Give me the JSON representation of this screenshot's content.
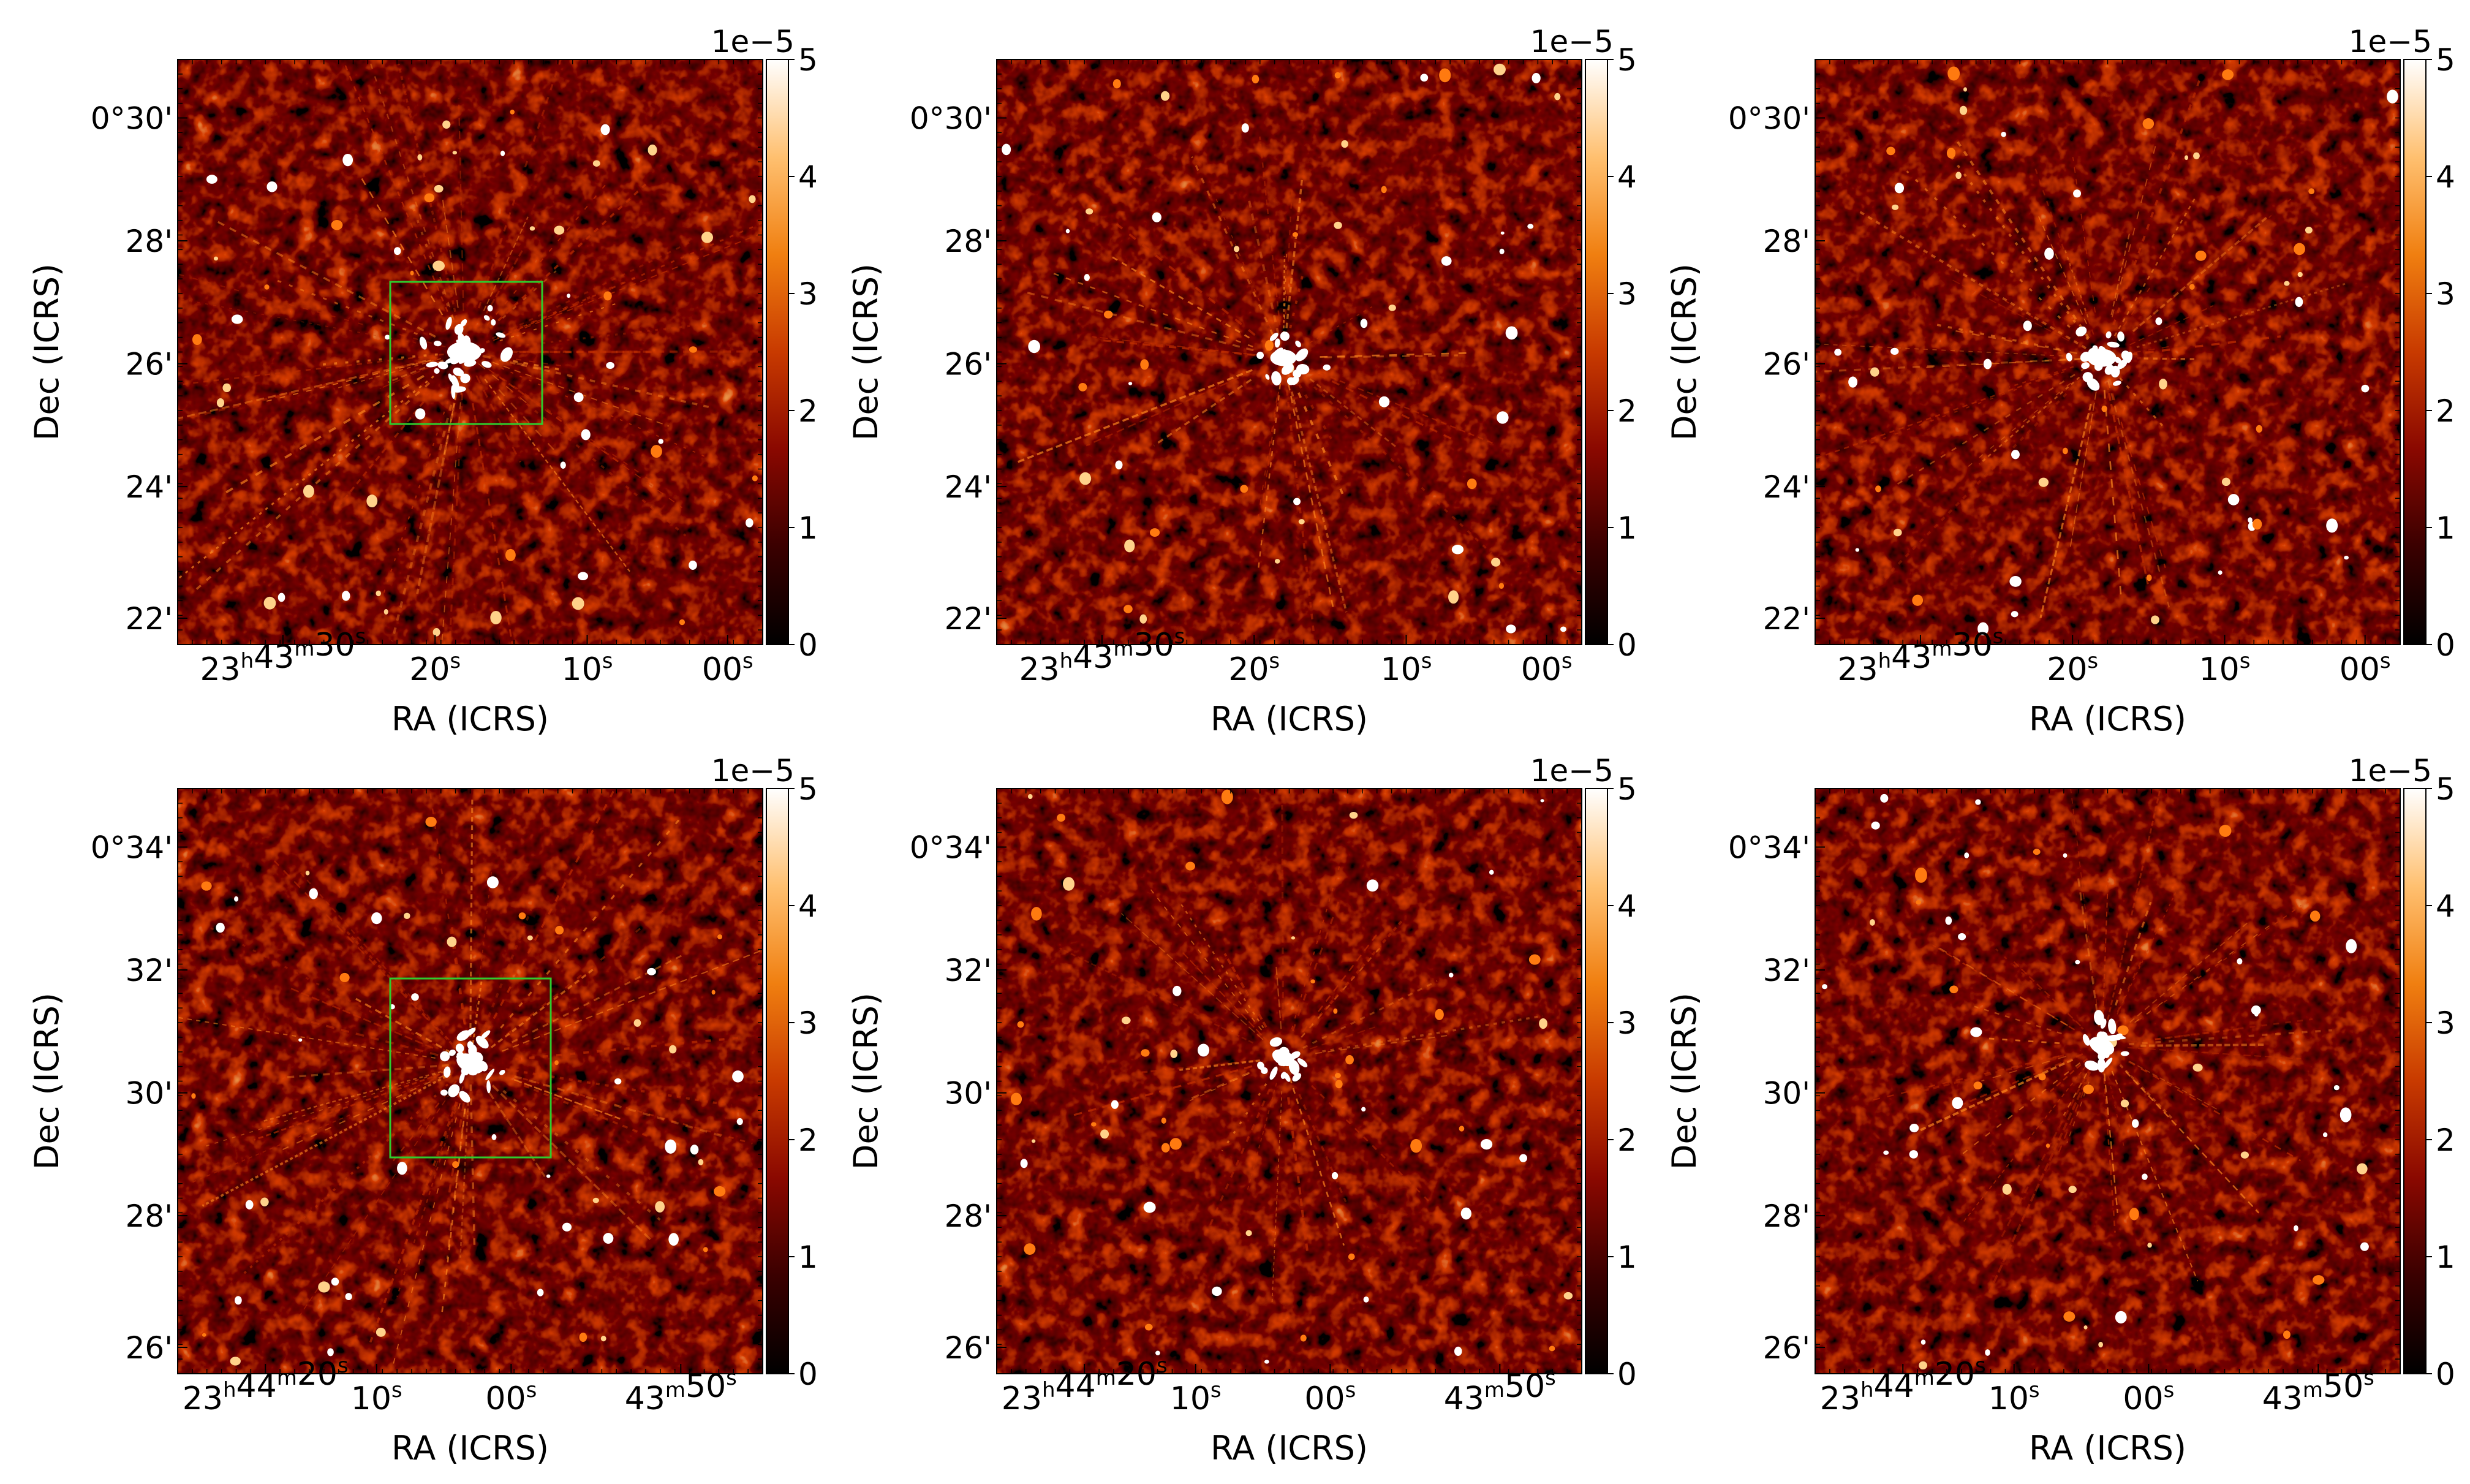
{
  "figure": {
    "colormap_name": "gist_heat",
    "colors": {
      "box": "#2ecc2e",
      "axis": "#000000",
      "background": "#ffffff",
      "colormap_stops": [
        "#000000",
        "#3a0000",
        "#8a0800",
        "#c83a00",
        "#f07f10",
        "#ffc070",
        "#ffffff"
      ]
    },
    "colorbar": {
      "multiplier": "1e−5",
      "ticks": [
        "0",
        "1",
        "2",
        "3",
        "4",
        "5"
      ]
    },
    "panels": [
      {
        "id": "top-left",
        "xlabel": "RA (ICRS)",
        "ylabel": "Dec (ICRS)",
        "ra_ticks": [
          {
            "h": "23",
            "m": "43",
            "s": "30"
          },
          {
            "s": "20"
          },
          {
            "s": "10"
          },
          {
            "s": "00"
          }
        ],
        "dec_ticks": [
          "0°30'",
          "28'",
          "26'",
          "24'",
          "22'"
        ],
        "has_box": true
      },
      {
        "id": "top-middle",
        "xlabel": "RA (ICRS)",
        "ylabel": "Dec (ICRS)",
        "ra_ticks": [
          {
            "h": "23",
            "m": "43",
            "s": "30"
          },
          {
            "s": "20"
          },
          {
            "s": "10"
          },
          {
            "s": "00"
          }
        ],
        "dec_ticks": [
          "0°30'",
          "28'",
          "26'",
          "24'",
          "22'"
        ],
        "has_box": false
      },
      {
        "id": "top-right",
        "xlabel": "RA (ICRS)",
        "ylabel": "Dec (ICRS)",
        "ra_ticks": [
          {
            "h": "23",
            "m": "43",
            "s": "30"
          },
          {
            "s": "20"
          },
          {
            "s": "10"
          },
          {
            "s": "00"
          }
        ],
        "dec_ticks": [
          "0°30'",
          "28'",
          "26'",
          "24'",
          "22'"
        ],
        "has_box": false
      },
      {
        "id": "bottom-left",
        "xlabel": "RA (ICRS)",
        "ylabel": "Dec (ICRS)",
        "ra_ticks": [
          {
            "h": "23",
            "m": "44",
            "s": "20"
          },
          {
            "s": "10"
          },
          {
            "s": "00"
          },
          {
            "m": "43",
            "s": "50"
          }
        ],
        "dec_ticks": [
          "0°34'",
          "32'",
          "30'",
          "28'",
          "26'"
        ],
        "has_box": true
      },
      {
        "id": "bottom-middle",
        "xlabel": "RA (ICRS)",
        "ylabel": "Dec (ICRS)",
        "ra_ticks": [
          {
            "h": "23",
            "m": "44",
            "s": "20"
          },
          {
            "s": "10"
          },
          {
            "s": "00"
          },
          {
            "m": "43",
            "s": "50"
          }
        ],
        "dec_ticks": [
          "0°34'",
          "32'",
          "30'",
          "28'",
          "26'"
        ],
        "has_box": false
      },
      {
        "id": "bottom-right",
        "xlabel": "RA (ICRS)",
        "ylabel": "Dec (ICRS)",
        "ra_ticks": [
          {
            "h": "23",
            "m": "44",
            "s": "20"
          },
          {
            "s": "10"
          },
          {
            "s": "00"
          },
          {
            "m": "43",
            "s": "50"
          }
        ],
        "dec_ticks": [
          "0°34'",
          "32'",
          "30'",
          "28'",
          "26'"
        ],
        "has_box": false
      }
    ]
  }
}
